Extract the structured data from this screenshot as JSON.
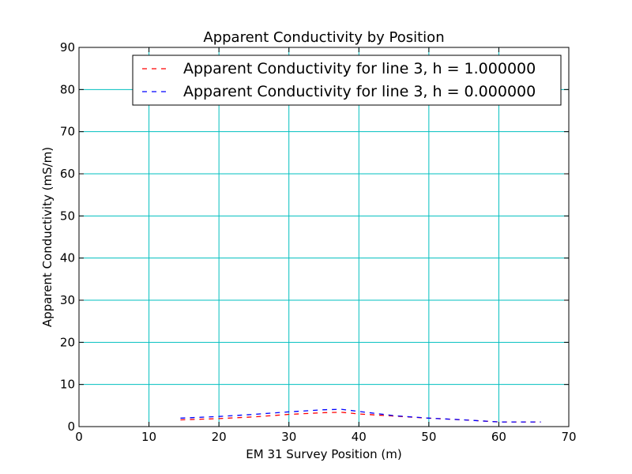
{
  "chart_data": {
    "type": "line",
    "title": "Apparent Conductivity by Position",
    "xlabel": "EM 31 Survey Position (m)",
    "ylabel": "Apparent Conductivity (mS/m)",
    "xlim": [
      0,
      70
    ],
    "ylim": [
      0,
      90
    ],
    "xticks": [
      0,
      10,
      20,
      30,
      40,
      50,
      60,
      70
    ],
    "yticks": [
      0,
      10,
      20,
      30,
      40,
      50,
      60,
      70,
      80,
      90
    ],
    "grid": true,
    "grid_color": "#00bfbf",
    "legend_position": "top-right",
    "series": [
      {
        "name": "Apparent Conductivity for line 3, h = 1.000000",
        "color": "#ff0000",
        "x": [
          14.5,
          20,
          25,
          30,
          35,
          37.5,
          40,
          45,
          50,
          55,
          60,
          66
        ],
        "y": [
          1.6,
          1.9,
          2.3,
          2.9,
          3.3,
          3.4,
          3.0,
          2.5,
          2.0,
          1.6,
          1.1,
          1.1
        ]
      },
      {
        "name": "Apparent Conductivity for line 3, h = 0.000000",
        "color": "#0000ff",
        "x": [
          14.5,
          20,
          25,
          30,
          35,
          37.5,
          40,
          45,
          50,
          55,
          60,
          66
        ],
        "y": [
          2.0,
          2.4,
          2.9,
          3.5,
          4.0,
          4.1,
          3.6,
          2.6,
          2.0,
          1.6,
          1.1,
          1.1
        ]
      }
    ]
  }
}
